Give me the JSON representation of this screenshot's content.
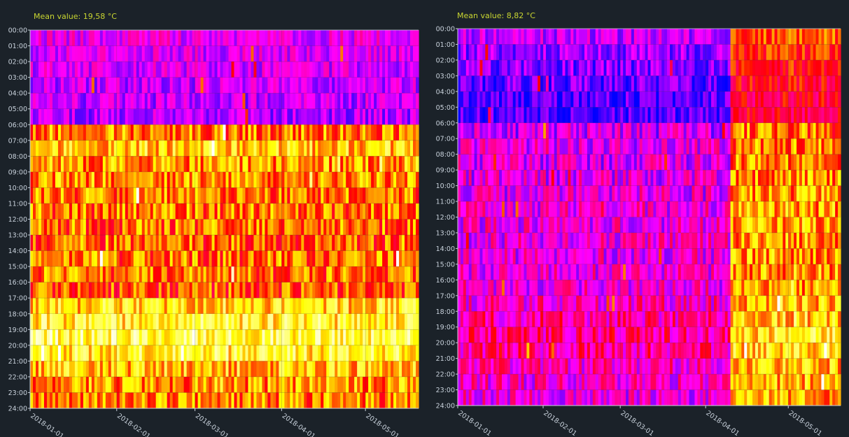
{
  "chart_data": [
    {
      "type": "heatmap",
      "title": "Mean value: 19,58 °C",
      "y_ticks": [
        "00:00",
        "01:00",
        "02:00",
        "03:00",
        "04:00",
        "05:00",
        "06:00",
        "07:00",
        "08:00",
        "09:00",
        "10:00",
        "11:00",
        "12:00",
        "13:00",
        "14:00",
        "15:00",
        "16:00",
        "17:00",
        "18:00",
        "19:00",
        "20:00",
        "21:00",
        "22:00",
        "23:00",
        "24:00"
      ],
      "x_ticks": [
        "2018-01-01",
        "2018-02-01",
        "2018-03-01",
        "2018-04-01",
        "2018-05-01"
      ],
      "x_range": [
        "2018-01-01",
        "2018-05-20"
      ],
      "y_range": [
        "00:00",
        "24:00"
      ],
      "grid": true,
      "hourly_profile": [
        0.25,
        0.23,
        0.22,
        0.2,
        0.19,
        0.18,
        0.62,
        0.72,
        0.65,
        0.64,
        0.62,
        0.61,
        0.6,
        0.59,
        0.6,
        0.6,
        0.57,
        0.73,
        0.78,
        0.83,
        0.78,
        0.7,
        0.64,
        0.62
      ],
      "period_shift": [
        {
          "from": "2018-01-01",
          "to": "2018-05-20",
          "offset": 0
        }
      ],
      "colors": [
        "#0000ff",
        "#ff00ff",
        "#ff0000",
        "#ffff00",
        "#ffffff"
      ]
    },
    {
      "type": "heatmap",
      "title": "Mean value: 8,82 °C",
      "y_ticks": [
        "00:00",
        "01:00",
        "02:00",
        "03:00",
        "04:00",
        "05:00",
        "06:00",
        "07:00",
        "08:00",
        "09:00",
        "10:00",
        "11:00",
        "12:00",
        "13:00",
        "14:00",
        "15:00",
        "16:00",
        "17:00",
        "18:00",
        "19:00",
        "20:00",
        "21:00",
        "22:00",
        "23:00",
        "24:00"
      ],
      "x_ticks": [
        "2018-01-01",
        "2018-02-01",
        "2018-03-01",
        "2018-04-01",
        "2018-05-01"
      ],
      "x_range": [
        "2018-01-01",
        "2018-05-20"
      ],
      "y_range": [
        "00:00",
        "24:00"
      ],
      "grid": true,
      "hourly_profile": [
        0.2,
        0.15,
        0.13,
        0.1,
        0.08,
        0.07,
        0.22,
        0.25,
        0.24,
        0.25,
        0.26,
        0.27,
        0.27,
        0.27,
        0.27,
        0.27,
        0.28,
        0.31,
        0.34,
        0.37,
        0.35,
        0.31,
        0.29,
        0.27
      ],
      "period_shift": [
        {
          "from": "2018-01-01",
          "to": "2018-04-10",
          "offset": 0
        },
        {
          "from": "2018-04-10",
          "to": "2018-05-20",
          "offset": 0.38
        }
      ],
      "colors": [
        "#0000ff",
        "#ff00ff",
        "#ff0000",
        "#ffff00",
        "#ffffff"
      ]
    }
  ]
}
